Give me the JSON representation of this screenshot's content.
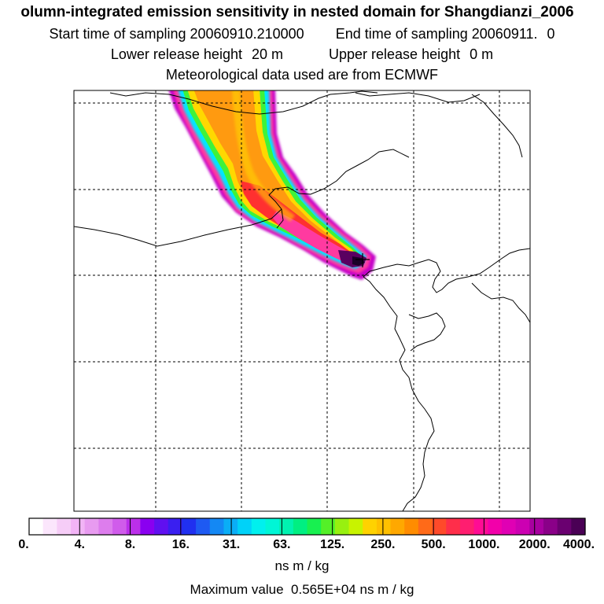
{
  "header": {
    "title": "olumn-integrated emission sensitivity in nested domain for Shangdianzi_2006",
    "start_label": "Start time of sampling 20060910.210000",
    "end_label": "End time of sampling 20060911.",
    "end_value": "0",
    "lower_label": "Lower release height",
    "lower_value": "20 m",
    "upper_label": "Upper release height",
    "upper_value": "0 m",
    "met_label": "Meteorological data used are from ECMWF"
  },
  "colorbar": {
    "ticks": [
      "0.",
      "4.",
      "8.",
      "16.",
      "31.",
      "63.",
      "125.",
      "250.",
      "500.",
      "1000.",
      "2000.",
      "4000."
    ],
    "colors": [
      "#ffffff",
      "#fbe6fc",
      "#f6cdf7",
      "#f2b4f6",
      "#e89bf0",
      "#dd7ded",
      "#d05ceb",
      "#bb2fea",
      "#8a00f0",
      "#6010f0",
      "#3a1ff0",
      "#2030f0",
      "#1e5af2",
      "#1488f4",
      "#0aaef6",
      "#00d2f8",
      "#00f0ee",
      "#00f6d6",
      "#00f2b0",
      "#00ef82",
      "#18f050",
      "#54f028",
      "#98f010",
      "#c8f300",
      "#ffd200",
      "#ffc000",
      "#ffa800",
      "#ff8c00",
      "#ff6a18",
      "#ff4a2a",
      "#ff2e4a",
      "#ff1e70",
      "#ff0c94",
      "#f200aa",
      "#e000b4",
      "#cc00b2",
      "#a800a0",
      "#8a0088",
      "#6a0070",
      "#4a0055"
    ],
    "units": "ns m / kg"
  },
  "max_value": {
    "label": "Maximum value",
    "value": "0.565E+04",
    "units": "ns m / kg"
  },
  "map": {
    "gridline_color": "#000000",
    "coastline_color": "#000000",
    "plume_colors": {
      "edge": "#c400c8",
      "band_outer": "#ff3aa0",
      "cyan": "#00e6ff",
      "green": "#3ff23a",
      "yellow": "#ffd800",
      "core_orange": "#ff9a10",
      "core_red": "#ff3030",
      "peak": "#5a0060",
      "peak_center": "#1a0028"
    }
  }
}
